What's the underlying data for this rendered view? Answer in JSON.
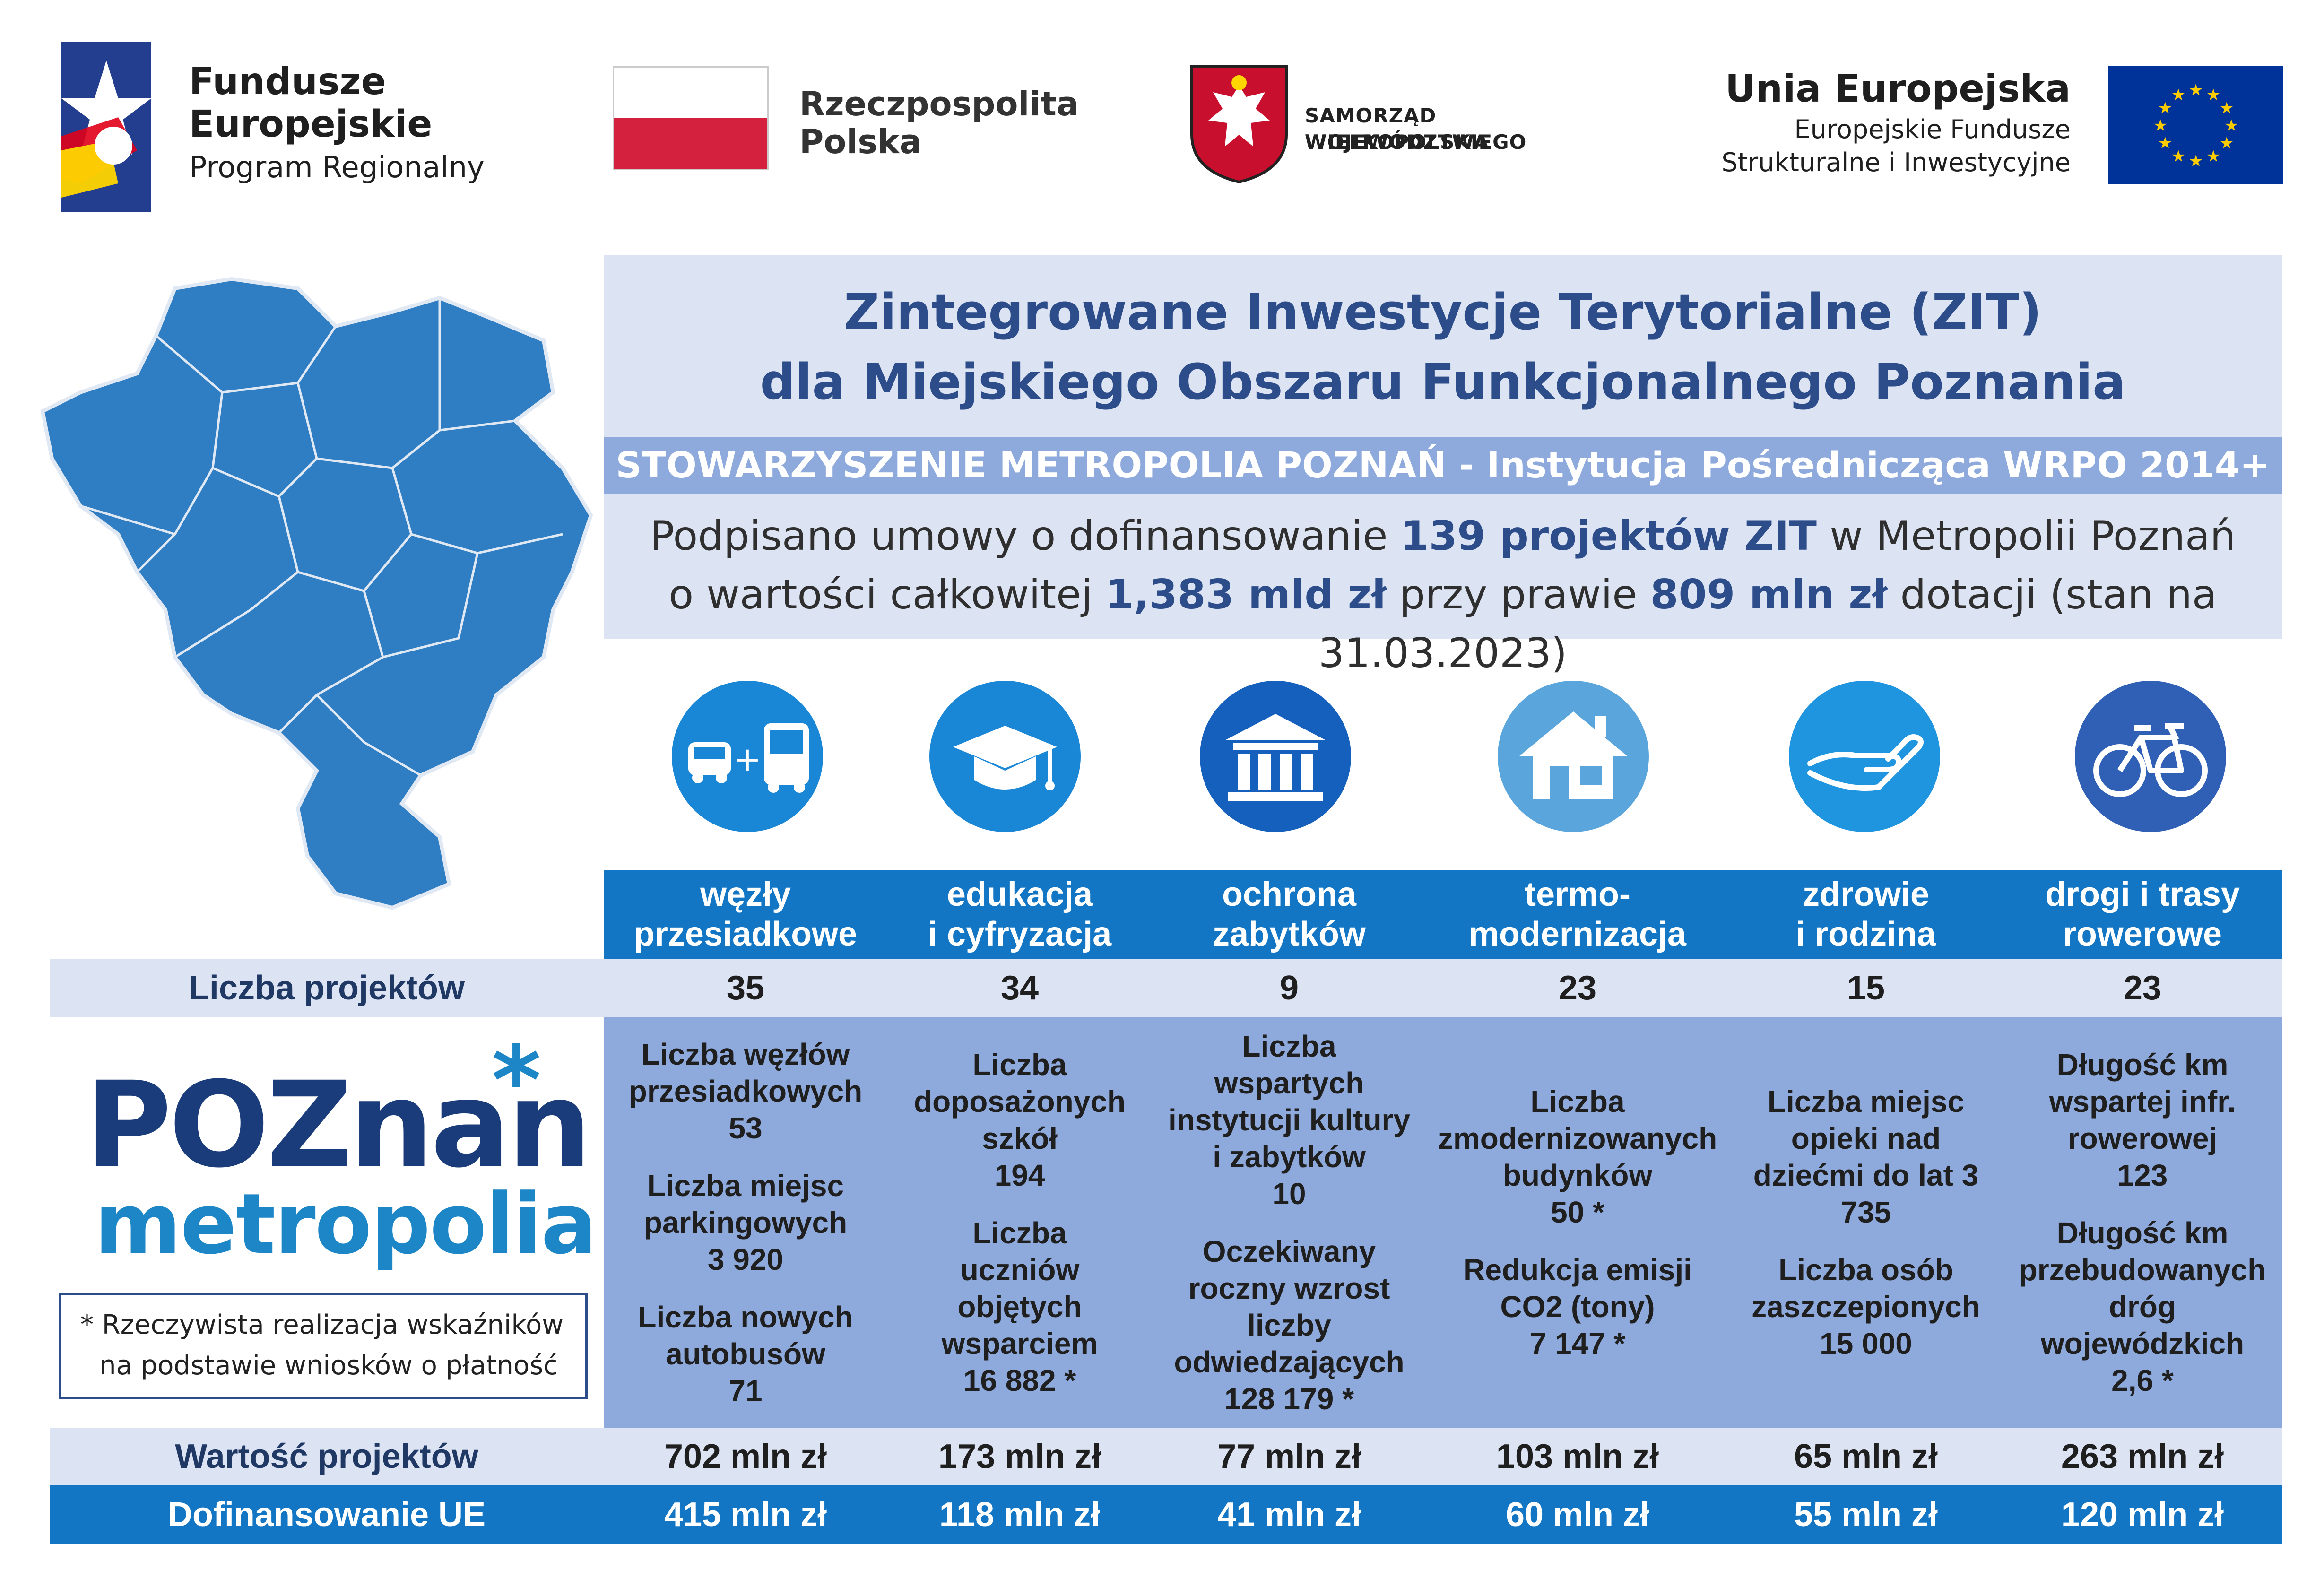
{
  "logos": {
    "fundusze": {
      "line1": "Fundusze",
      "line2": "Europejskie",
      "line3": "Program Regionalny"
    },
    "rzeczpospolita": {
      "line1": "Rzeczpospolita",
      "line2": "Polska"
    },
    "samorzad": {
      "line1": "SAMORZĄD  WOJEWÓDZTWA",
      "line2": "WIELKOPOLSKIEGO"
    },
    "unia": {
      "title": "Unia Europejska",
      "sub1": "Europejskie Fundusze",
      "sub2": "Strukturalne i Inwestycyjne"
    }
  },
  "header": {
    "title_line1": "Zintegrowane Inwestycje Terytorialne (ZIT)",
    "title_line2": "dla Miejskiego Obszaru Funkcjonalnego Poznania",
    "band": "STOWARZYSZENIE METROPOLIA POZNAŃ - Instytucja Pośrednicząca WRPO 2014+",
    "summary": {
      "l1_a": "Podpisano umowy o dofinansowanie ",
      "l1_b": "139 projektów ZIT",
      "l1_c": " w Metropolii Poznań",
      "l2_a": "o wartości całkowitej ",
      "l2_b": "1,383 mld zł",
      "l2_c": " przy prawie ",
      "l2_d": "809 mln zł",
      "l2_e": " dotacji (stan na 31.03.2023)"
    }
  },
  "colors": {
    "dark_blue": "#1276c4",
    "light_blue": "#dce3f3",
    "mid_blue": "#8ea9db",
    "title_blue": "#2d4d8a"
  },
  "icons": [
    "bus-car-icon",
    "graduation-cap-icon",
    "museum-icon",
    "house-icon",
    "hand-icon",
    "bicycle-icon"
  ],
  "table": {
    "categories": [
      {
        "l1": "węzły",
        "l2": "przesiadkowe"
      },
      {
        "l1": "edukacja",
        "l2": "i cyfryzacja"
      },
      {
        "l1": "ochrona",
        "l2": "zabytków"
      },
      {
        "l1": "termo-",
        "l2": "modernizacja"
      },
      {
        "l1": "zdrowie",
        "l2": "i rodzina"
      },
      {
        "l1": "drogi i trasy",
        "l2": "rowerowe"
      }
    ],
    "row_count_label": "Liczba projektów",
    "counts": [
      "35",
      "34",
      "9",
      "23",
      "15",
      "23"
    ],
    "indicators": [
      [
        [
          "Liczba węzłów",
          "przesiadkowych",
          "53"
        ],
        [
          "Liczba miejsc",
          "parkingowych",
          "3 920"
        ],
        [
          "Liczba nowych",
          "autobusów",
          "71"
        ]
      ],
      [
        [
          "Liczba",
          "doposażonych",
          "szkół",
          "194"
        ],
        [
          "Liczba",
          "uczniów",
          "objętych",
          "wsparciem",
          "16 882 *"
        ]
      ],
      [
        [
          "Liczba",
          "wspartych",
          "instytucji kultury",
          "i zabytków",
          "10"
        ],
        [
          "Oczekiwany",
          "roczny wzrost",
          "liczby",
          "odwiedzających",
          "128 179 *"
        ]
      ],
      [
        [
          "Liczba",
          "zmodernizowanych",
          "budynków",
          "50 *"
        ],
        [
          "Redukcja emisji",
          "CO2 (tony)",
          "7 147 *"
        ]
      ],
      [
        [
          "Liczba miejsc",
          "opieki nad",
          "dziećmi do lat 3",
          "735"
        ],
        [
          "Liczba osób",
          "zaszczepionych",
          "15 000"
        ]
      ],
      [
        [
          "Długość km",
          "wspartej infr.",
          "rowerowej",
          "123"
        ],
        [
          "Długość km",
          "przebudowanych",
          "dróg",
          "wojewódzkich",
          "2,6 *"
        ]
      ]
    ],
    "row_value_label": "Wartość projektów",
    "values": [
      "702 mln zł",
      "173 mln zł",
      "77 mln zł",
      "103 mln zł",
      "65 mln zł",
      "263 mln zł"
    ],
    "row_eu_label": "Dofinansowanie UE",
    "eu": [
      "415 mln zł",
      "118 mln zł",
      "41 mln zł",
      "60 mln zł",
      "55 mln zł",
      "120 mln zł"
    ]
  },
  "poznan_logo": {
    "poz": "POZnan",
    "metropolia": "metropolia"
  },
  "note": {
    "line1": "* Rzeczywista realizacja wskaźników",
    "line2": "na podstawie wniosków o płatność"
  }
}
